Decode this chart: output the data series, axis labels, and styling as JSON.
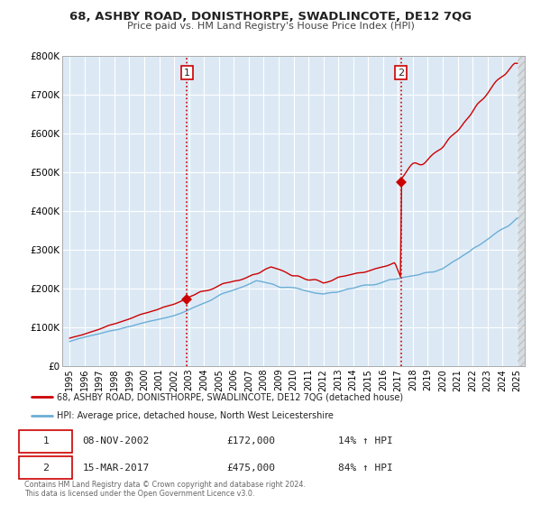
{
  "title": "68, ASHBY ROAD, DONISTHORPE, SWADLINCOTE, DE12 7QG",
  "subtitle": "Price paid vs. HM Land Registry's House Price Index (HPI)",
  "background_color": "#ffffff",
  "plot_bg_color": "#dce9f5",
  "grid_color": "#ffffff",
  "hpi_line_color": "#6baed6",
  "price_line_color": "#cc0000",
  "marker_color": "#cc0000",
  "sale1_x": 2002.86,
  "sale1_y": 172000,
  "sale2_x": 2017.21,
  "sale2_y": 475000,
  "vline_color": "#cc0000",
  "ylim": [
    0,
    800000
  ],
  "xlim": [
    1994.5,
    2025.5
  ],
  "yticks": [
    0,
    100000,
    200000,
    300000,
    400000,
    500000,
    600000,
    700000,
    800000
  ],
  "ytick_labels": [
    "£0",
    "£100K",
    "£200K",
    "£300K",
    "£400K",
    "£500K",
    "£600K",
    "£700K",
    "£800K"
  ],
  "xticks": [
    1995,
    1996,
    1997,
    1998,
    1999,
    2000,
    2001,
    2002,
    2003,
    2004,
    2005,
    2006,
    2007,
    2008,
    2009,
    2010,
    2011,
    2012,
    2013,
    2014,
    2015,
    2016,
    2017,
    2018,
    2019,
    2020,
    2021,
    2022,
    2023,
    2024,
    2025
  ],
  "legend_label_red": "68, ASHBY ROAD, DONISTHORPE, SWADLINCOTE, DE12 7QG (detached house)",
  "legend_label_blue": "HPI: Average price, detached house, North West Leicestershire",
  "sale1_label": "1",
  "sale2_label": "2",
  "sale1_date": "08-NOV-2002",
  "sale1_price": "£172,000",
  "sale1_hpi": "14% ↑ HPI",
  "sale2_date": "15-MAR-2017",
  "sale2_price": "£475,000",
  "sale2_hpi": "84% ↑ HPI",
  "footer1": "Contains HM Land Registry data © Crown copyright and database right 2024.",
  "footer2": "This data is licensed under the Open Government Licence v3.0."
}
